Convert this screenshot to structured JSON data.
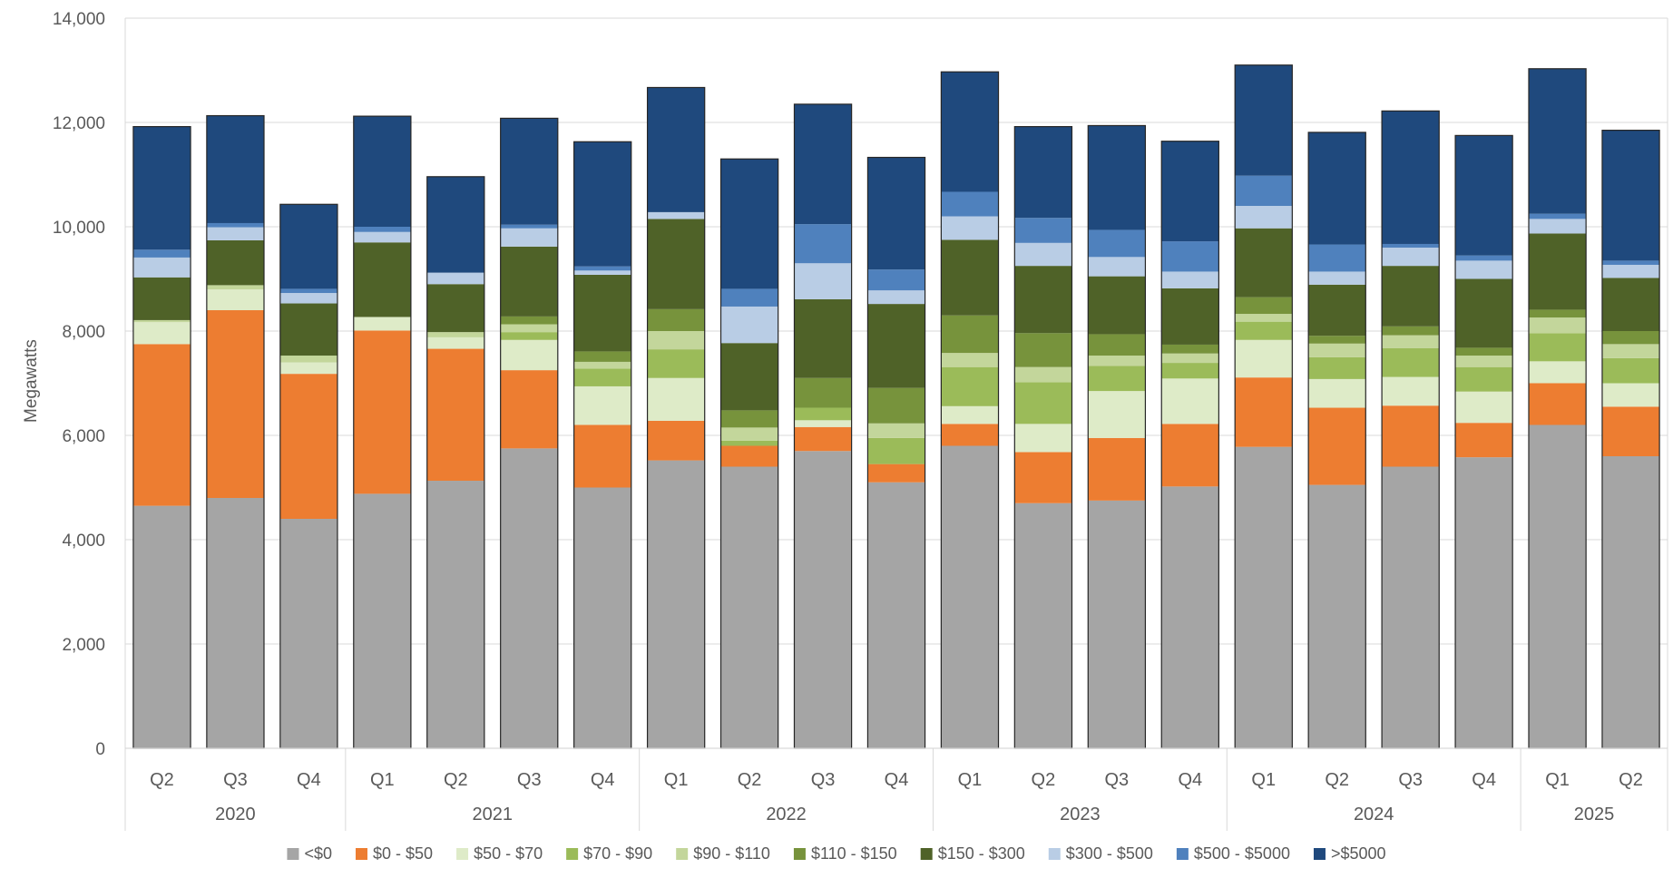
{
  "chart_data": {
    "type": "bar",
    "stacked": true,
    "title": "",
    "xlabel": "",
    "ylabel": "Megawatts",
    "ylim": [
      0,
      14000
    ],
    "yticks": [
      0,
      2000,
      4000,
      6000,
      8000,
      10000,
      12000,
      14000
    ],
    "ytick_labels": [
      "0",
      "2,000",
      "4,000",
      "6,000",
      "8,000",
      "10,000",
      "12,000",
      "14,000"
    ],
    "grid": true,
    "legend_position": "bottom",
    "categories": [
      "Q2",
      "Q3",
      "Q4",
      "Q1",
      "Q2",
      "Q3",
      "Q4",
      "Q1",
      "Q2",
      "Q3",
      "Q4",
      "Q1",
      "Q2",
      "Q3",
      "Q4",
      "Q1",
      "Q2",
      "Q3",
      "Q4",
      "Q1",
      "Q2"
    ],
    "year_groups": [
      {
        "label": "2020",
        "count": 3
      },
      {
        "label": "2021",
        "count": 4
      },
      {
        "label": "2022",
        "count": 4
      },
      {
        "label": "2023",
        "count": 4
      },
      {
        "label": "2024",
        "count": 4
      },
      {
        "label": "2025",
        "count": 2
      }
    ],
    "series": [
      {
        "name": "<$0",
        "color": "#A5A5A5",
        "values": [
          4650,
          4800,
          4400,
          4880,
          5130,
          5750,
          5000,
          5520,
          5400,
          5700,
          5100,
          5800,
          4700,
          4750,
          5020,
          5780,
          5050,
          5400,
          5580,
          6200,
          5600
        ]
      },
      {
        "name": "$0 - $50",
        "color": "#ED7D31",
        "values": [
          3100,
          3600,
          2780,
          3130,
          2530,
          1500,
          1200,
          760,
          400,
          460,
          350,
          420,
          980,
          1200,
          1200,
          1330,
          1480,
          1170,
          660,
          800,
          950
        ]
      },
      {
        "name": "$50 - $70",
        "color": "#DEEBC8",
        "values": [
          420,
          400,
          220,
          260,
          220,
          580,
          740,
          820,
          0,
          130,
          0,
          340,
          540,
          900,
          870,
          720,
          550,
          550,
          600,
          420,
          450
        ]
      },
      {
        "name": "$70 - $90",
        "color": "#9BBB59",
        "values": [
          0,
          0,
          0,
          0,
          0,
          150,
          340,
          550,
          100,
          240,
          500,
          750,
          800,
          480,
          300,
          350,
          420,
          550,
          470,
          540,
          480
        ]
      },
      {
        "name": "$90 - $110",
        "color": "#C3D69B",
        "values": [
          40,
          80,
          130,
          0,
          100,
          150,
          130,
          350,
          250,
          0,
          280,
          270,
          290,
          200,
          180,
          150,
          260,
          250,
          220,
          300,
          270
        ]
      },
      {
        "name": "$110 - $150",
        "color": "#77933C",
        "values": [
          0,
          0,
          0,
          0,
          0,
          150,
          200,
          420,
          330,
          570,
          680,
          720,
          650,
          410,
          170,
          320,
          150,
          170,
          150,
          150,
          250
        ]
      },
      {
        "name": "$150 - $300",
        "color": "#4F6228",
        "values": [
          820,
          860,
          1000,
          1430,
          920,
          1340,
          1470,
          1730,
          1290,
          1510,
          1610,
          1450,
          1290,
          1110,
          1080,
          1320,
          980,
          1160,
          1320,
          1460,
          1020
        ]
      },
      {
        "name": "$300 - $500",
        "color": "#B9CDE5",
        "values": [
          380,
          250,
          200,
          200,
          220,
          350,
          80,
          130,
          700,
          690,
          260,
          450,
          440,
          370,
          320,
          430,
          250,
          350,
          350,
          280,
          250
        ]
      },
      {
        "name": "$500 - $5000",
        "color": "#4F81BD",
        "values": [
          150,
          80,
          80,
          100,
          0,
          70,
          80,
          0,
          340,
          750,
          400,
          470,
          480,
          520,
          580,
          580,
          520,
          70,
          100,
          100,
          80
        ]
      },
      {
        "name": ">$5000",
        "color": "#1F497D",
        "values": [
          2360,
          2060,
          1620,
          2120,
          1840,
          2040,
          2390,
          2390,
          2490,
          2300,
          2150,
          2300,
          1750,
          2000,
          1920,
          2120,
          2150,
          2550,
          2300,
          2780,
          2500
        ]
      }
    ]
  }
}
